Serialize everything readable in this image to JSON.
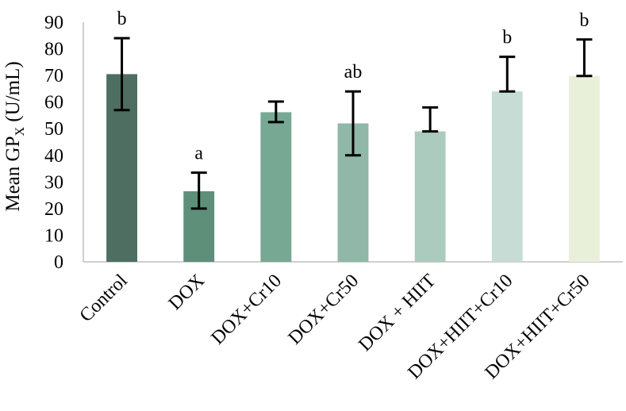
{
  "chart_data": {
    "type": "bar",
    "title": "",
    "xlabel": "",
    "ylabel": {
      "prefix": "Mean GP",
      "subscript": "X",
      "suffix": " (U/mL)"
    },
    "ylim": [
      0,
      90
    ],
    "yticks": [
      "0",
      "10",
      "20",
      "30",
      "40",
      "50",
      "60",
      "70",
      "80",
      "90"
    ],
    "grid": false,
    "legend": "none",
    "categories": [
      "Control",
      "DOX",
      "DOX+Cr10",
      "DOX+Cr50",
      "DOX + HIIT",
      "DOX+HIIT+Cr10",
      "DOX+HIIT+Cr50"
    ],
    "values": [
      70.5,
      26.5,
      56.2,
      52.0,
      49.0,
      64.0,
      69.8
    ],
    "error_upper": [
      84.0,
      33.5,
      60.2,
      64.0,
      58.0,
      77.0,
      83.5
    ],
    "error_lower": [
      57.0,
      20.0,
      52.5,
      40.0,
      49.0,
      64.0,
      69.8
    ],
    "significance_labels": [
      "b",
      "a",
      "",
      "ab",
      "",
      "b",
      "b"
    ],
    "colors": [
      "#4d6e60",
      "#5d8f79",
      "#77a894",
      "#90b7a7",
      "#abcbbe",
      "#c6dcd4",
      "#e8f0da"
    ]
  }
}
